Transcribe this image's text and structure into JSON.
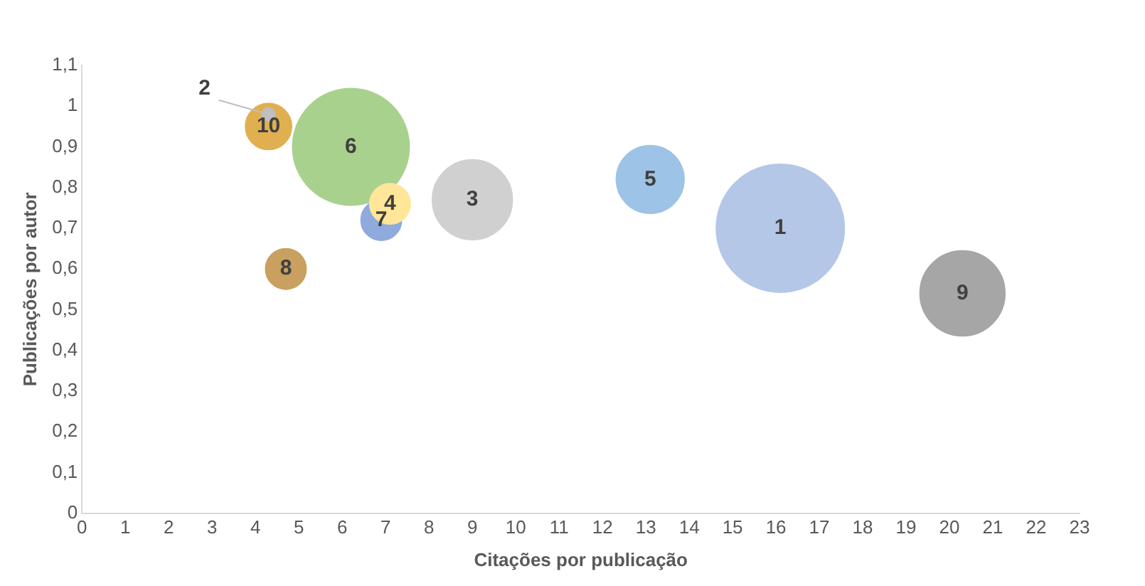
{
  "chart_data": {
    "type": "bubble",
    "xlabel": "Citações por publicação",
    "ylabel": "Publicações por autor",
    "grid": false,
    "legend": false,
    "xlim": [
      0,
      23
    ],
    "xticks": [
      0,
      1,
      2,
      3,
      4,
      5,
      6,
      7,
      8,
      9,
      10,
      11,
      12,
      13,
      14,
      15,
      16,
      17,
      18,
      19,
      20,
      21,
      22,
      23
    ],
    "ylim": [
      0,
      1.1
    ],
    "yticks": [
      0,
      {
        "value": 0.1,
        "label": "0,1"
      },
      {
        "value": 0.2,
        "label": "0,2"
      },
      {
        "value": 0.3,
        "label": "0,3"
      },
      {
        "value": 0.4,
        "label": "0,4"
      },
      {
        "value": 0.5,
        "label": "0,5"
      },
      {
        "value": 0.6,
        "label": "0,6"
      },
      {
        "value": 0.7,
        "label": "0,7"
      },
      {
        "value": 0.8,
        "label": "0,8"
      },
      {
        "value": 0.9,
        "label": "0,9"
      },
      1,
      {
        "value": 1.1,
        "label": "1,1"
      }
    ],
    "series": [
      {
        "name": "1",
        "color": "#b4c7e7",
        "x": [
          16.1
        ],
        "values": [
          0.7
        ],
        "sizes": [
          1
        ]
      },
      {
        "name": "2",
        "color": "#bfbfbf",
        "x": [
          4.3
        ],
        "values": [
          0.98
        ],
        "sizes": [
          0.01
        ]
      },
      {
        "name": "3",
        "color": "#d0d0d0",
        "x": [
          9
        ],
        "values": [
          0.77
        ],
        "sizes": [
          0.39
        ]
      },
      {
        "name": "4",
        "color": "#ffe699",
        "x": [
          7.1
        ],
        "values": [
          0.76
        ],
        "sizes": [
          0.1
        ]
      },
      {
        "name": "5",
        "color": "#9dc3e6",
        "x": [
          13.1
        ],
        "values": [
          0.82
        ],
        "sizes": [
          0.28
        ]
      },
      {
        "name": "6",
        "color": "#a9d18e",
        "x": [
          6.2
        ],
        "values": [
          0.9
        ],
        "sizes": [
          0.83
        ]
      },
      {
        "name": "7",
        "color": "#8faadc",
        "x": [
          6.9
        ],
        "values": [
          0.72
        ],
        "sizes": [
          0.1
        ]
      },
      {
        "name": "8",
        "color": "#c9a060",
        "x": [
          4.7
        ],
        "values": [
          0.6
        ],
        "sizes": [
          0.1
        ]
      },
      {
        "name": "9",
        "color": "#a6a6a6",
        "x": [
          20.3
        ],
        "values": [
          0.54
        ],
        "sizes": [
          0.44
        ]
      },
      {
        "name": "10",
        "color": "#e0b050",
        "x": [
          4.3
        ],
        "values": [
          0.95
        ],
        "sizes": [
          0.13
        ]
      }
    ]
  }
}
